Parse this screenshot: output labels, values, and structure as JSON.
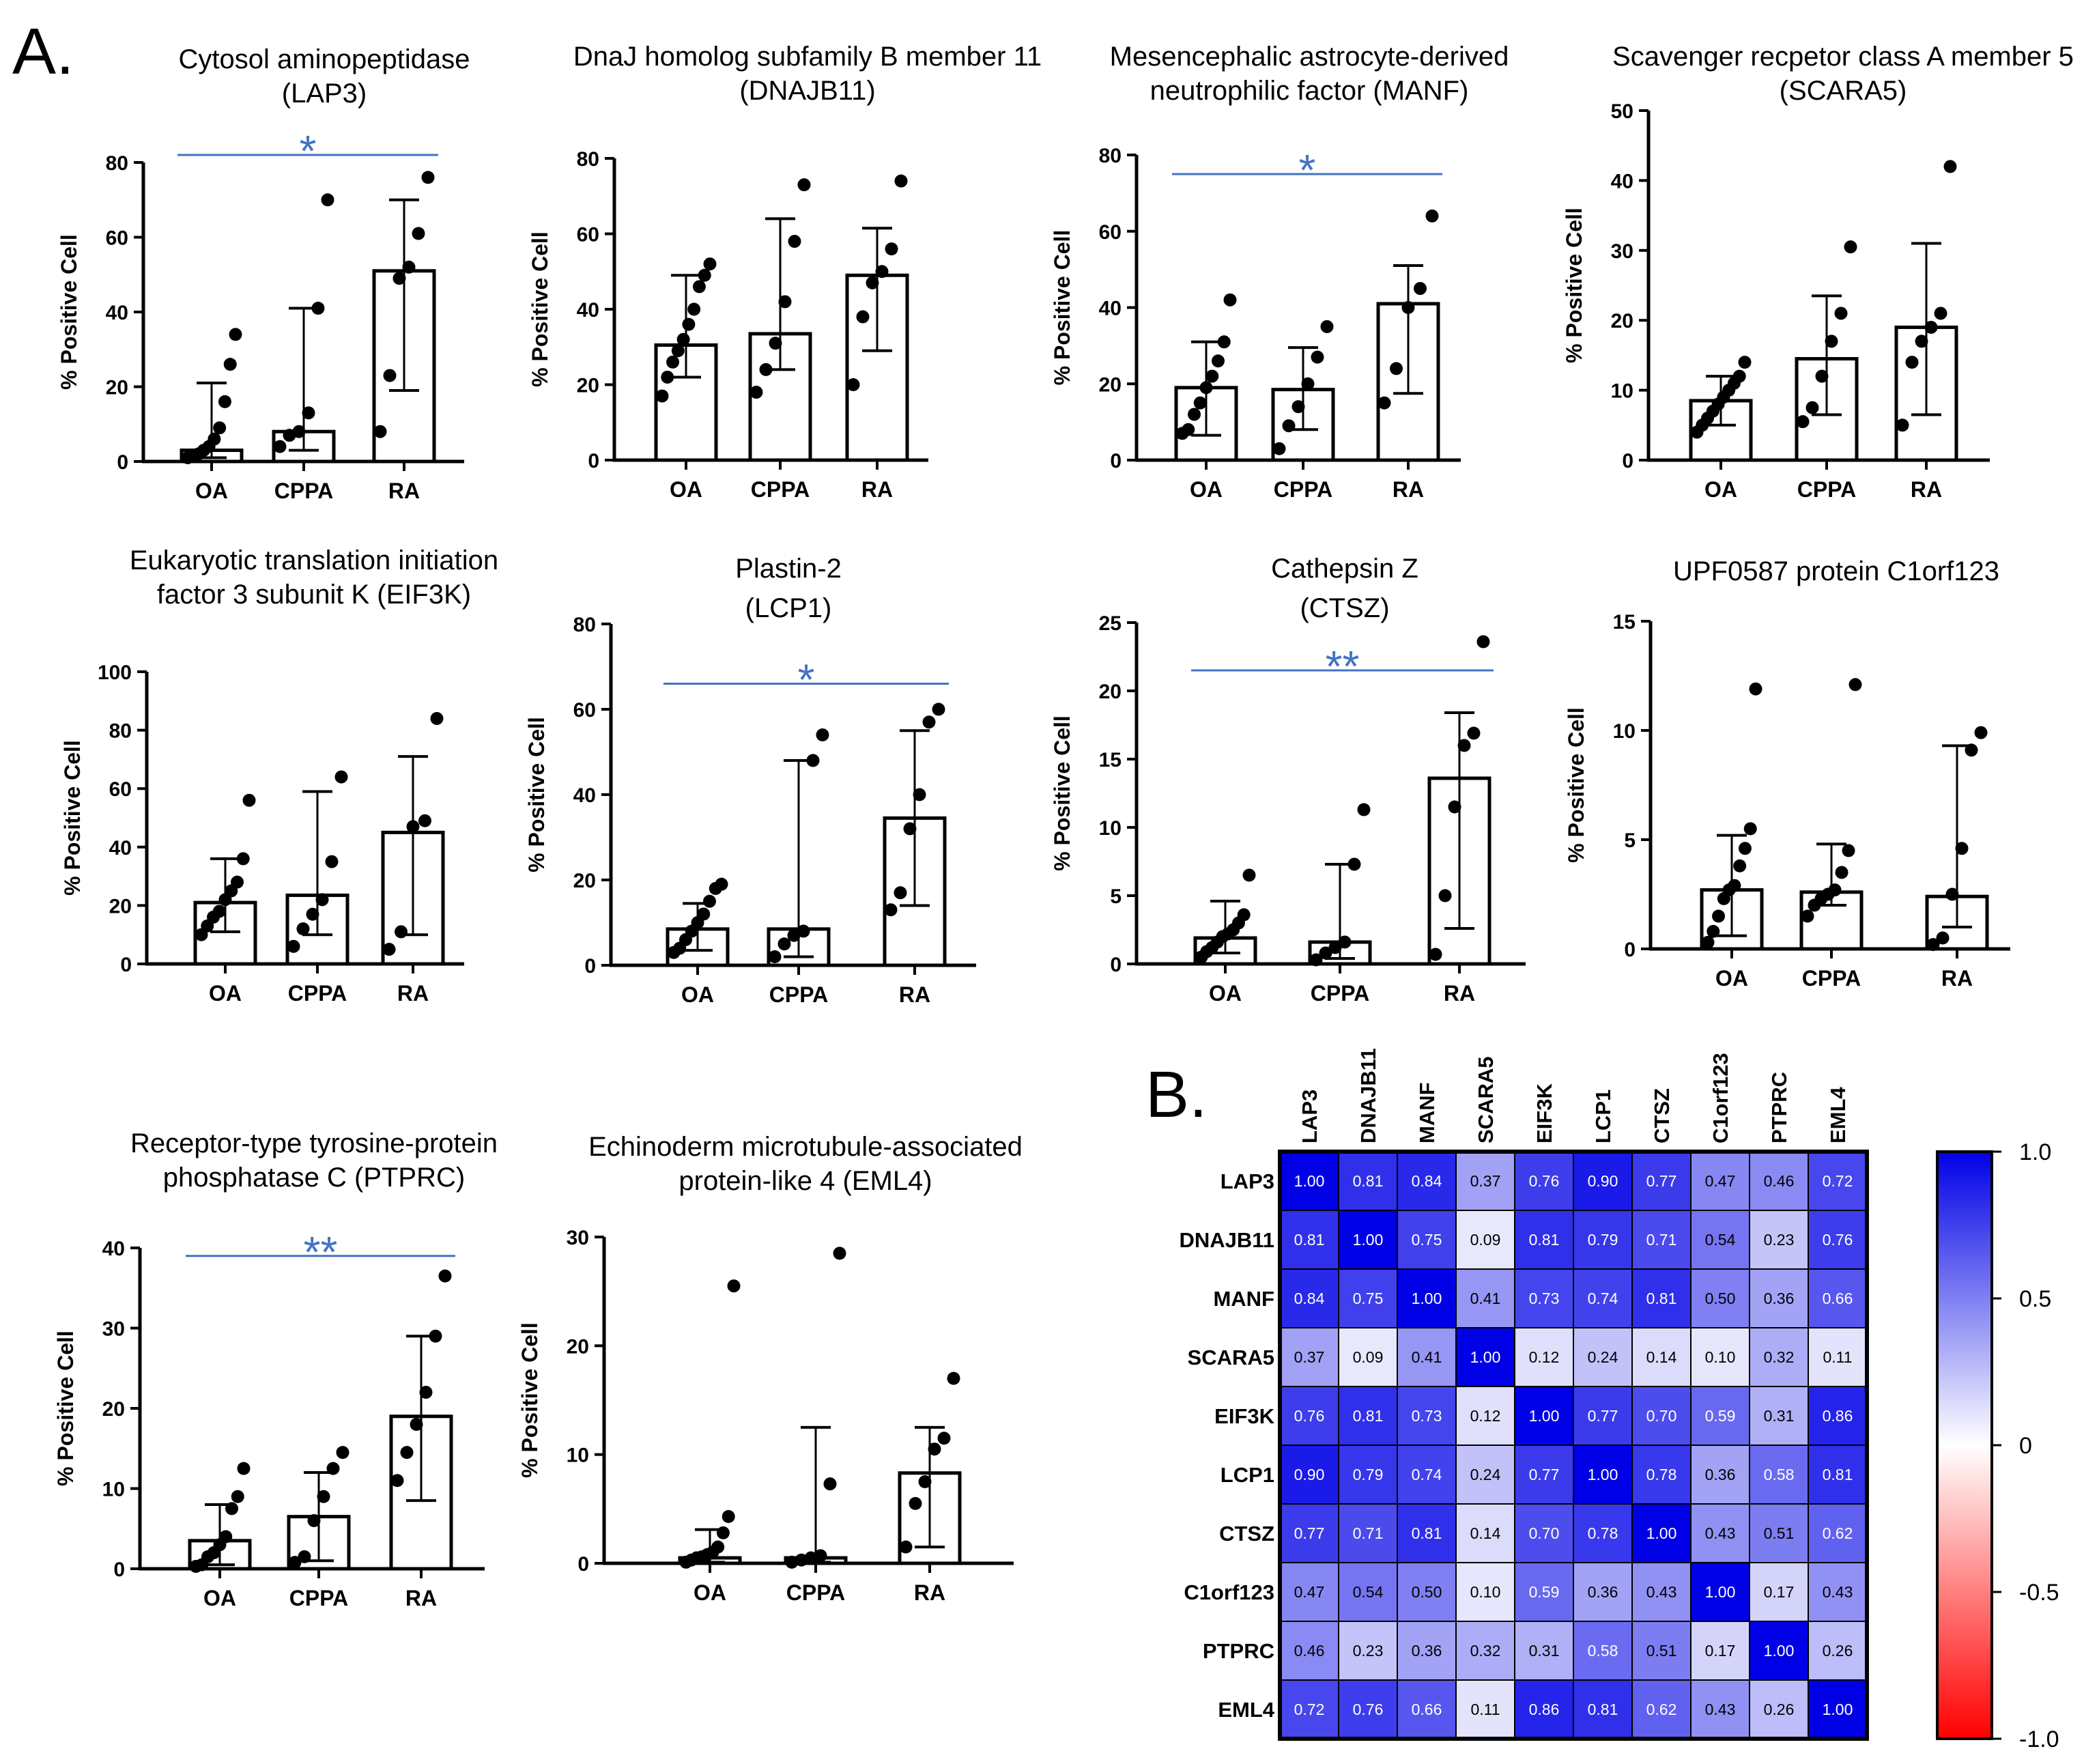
{
  "panel_labels": {
    "a": "A.",
    "b": "B."
  },
  "chart_data": [
    {
      "type": "bar",
      "id": "lap3",
      "title": [
        "Cytosol aminopeptidase",
        "(LAP3)"
      ],
      "ylabel": "% Positive Cell",
      "categories": [
        "OA",
        "CPPA",
        "RA"
      ],
      "ylim": [
        0,
        80
      ],
      "yticks": [
        0,
        20,
        40,
        60,
        80
      ],
      "bars": [
        3,
        8,
        51
      ],
      "err_low": [
        1,
        3,
        19
      ],
      "err_high": [
        21,
        41,
        70
      ],
      "points": [
        [
          1,
          1.5,
          2,
          3,
          4,
          6,
          9,
          16,
          26,
          34
        ],
        [
          4,
          7,
          8,
          13,
          41,
          70
        ],
        [
          8,
          23,
          49,
          52,
          61,
          76
        ]
      ],
      "sig": {
        "label": "*",
        "from": 0,
        "to": 2,
        "y": 82
      }
    },
    {
      "type": "bar",
      "id": "dnajb11",
      "title": [
        "DnaJ homolog subfamily B member 11",
        "(DNAJB11)"
      ],
      "ylabel": "% Positive Cell",
      "categories": [
        "OA",
        "CPPA",
        "RA"
      ],
      "ylim": [
        0,
        80
      ],
      "yticks": [
        0,
        20,
        40,
        60,
        80
      ],
      "bars": [
        30.5,
        33.5,
        49
      ],
      "err_low": [
        22,
        24,
        29
      ],
      "err_high": [
        49,
        64,
        61.5
      ],
      "points": [
        [
          17,
          22,
          26,
          29,
          32,
          36,
          40,
          46,
          49,
          52
        ],
        [
          18,
          24,
          31,
          42,
          58,
          73
        ],
        [
          20,
          38,
          47,
          50,
          56,
          74
        ]
      ],
      "sig": null
    },
    {
      "type": "bar",
      "id": "manf",
      "title": [
        "Mesencephalic astrocyte-derived",
        "neutrophilic factor (MANF)"
      ],
      "ylabel": "% Positive Cell",
      "categories": [
        "OA",
        "CPPA",
        "RA"
      ],
      "ylim": [
        0,
        80
      ],
      "yticks": [
        0,
        20,
        40,
        60,
        80
      ],
      "bars": [
        19,
        18.5,
        41
      ],
      "err_low": [
        6.5,
        8,
        17.5
      ],
      "err_high": [
        31,
        29.5,
        51
      ],
      "points": [
        [
          7,
          8,
          12,
          15,
          19,
          22,
          26,
          31,
          42
        ],
        [
          3,
          9,
          14,
          20,
          27,
          35
        ],
        [
          15,
          24,
          40,
          45,
          64
        ]
      ],
      "sig": {
        "label": "*",
        "from": 0,
        "to": 2,
        "y": 75
      }
    },
    {
      "type": "bar",
      "id": "scara5",
      "title": [
        "Scavenger recpetor class A member 5",
        "(SCARA5)"
      ],
      "ylabel": "% Positive Cell",
      "categories": [
        "OA",
        "CPPA",
        "RA"
      ],
      "ylim": [
        0,
        50
      ],
      "yticks": [
        0,
        10,
        20,
        30,
        40,
        50
      ],
      "bars": [
        8.5,
        14.5,
        19
      ],
      "err_low": [
        5,
        6.5,
        6.5
      ],
      "err_high": [
        12,
        23.5,
        31
      ],
      "points": [
        [
          4,
          5,
          6,
          7,
          8,
          9,
          10,
          11,
          12,
          14
        ],
        [
          5.5,
          7.5,
          12,
          17,
          21,
          30.5
        ],
        [
          5,
          14,
          17,
          19,
          21,
          42
        ]
      ],
      "sig": null
    },
    {
      "type": "bar",
      "id": "eif3k",
      "title": [
        "Eukaryotic translation initiation",
        "factor 3 subunit K (EIF3K)"
      ],
      "ylabel": "% Positive Cell",
      "categories": [
        "OA",
        "CPPA",
        "RA"
      ],
      "ylim": [
        0,
        100
      ],
      "yticks": [
        0,
        20,
        40,
        60,
        80,
        100
      ],
      "bars": [
        21,
        23.5,
        45
      ],
      "err_low": [
        11,
        10,
        10
      ],
      "err_high": [
        36,
        59,
        71
      ],
      "points": [
        [
          10,
          13,
          16,
          18,
          22,
          25,
          28,
          36,
          56
        ],
        [
          6,
          12,
          17,
          22,
          35,
          64
        ],
        [
          5,
          11,
          47,
          49,
          84
        ]
      ],
      "sig": null
    },
    {
      "type": "bar",
      "id": "lcp1",
      "title": [
        "Plastin-2",
        "(LCP1)"
      ],
      "ylabel": "% Positive Cell",
      "categories": [
        "OA",
        "CPPA",
        "RA"
      ],
      "ylim": [
        0,
        80
      ],
      "yticks": [
        0,
        20,
        40,
        60,
        80
      ],
      "bars": [
        8.5,
        8.5,
        34.5
      ],
      "err_low": [
        3.5,
        2,
        14
      ],
      "err_high": [
        14.5,
        48,
        55
      ],
      "points": [
        [
          3,
          4,
          6,
          8,
          10,
          12,
          15,
          18,
          19
        ],
        [
          2,
          5,
          7,
          8,
          48,
          54
        ],
        [
          13,
          17,
          32,
          40,
          57,
          60
        ]
      ],
      "sig": {
        "label": "*",
        "from": 0,
        "to": 2,
        "y": 66
      }
    },
    {
      "type": "bar",
      "id": "ctsz",
      "title": [
        "Cathepsin Z",
        "(CTSZ)"
      ],
      "ylabel": "% Positive Cell",
      "categories": [
        "OA",
        "CPPA",
        "RA"
      ],
      "ylim": [
        0,
        25
      ],
      "yticks": [
        0,
        5,
        10,
        15,
        20,
        25
      ],
      "bars": [
        1.9,
        1.6,
        13.6
      ],
      "err_low": [
        0.8,
        0.4,
        2.6
      ],
      "err_high": [
        4.6,
        7.3,
        18.4
      ],
      "points": [
        [
          0.5,
          0.9,
          1.2,
          1.6,
          2,
          2.2,
          2.5,
          3,
          3.6,
          6.5
        ],
        [
          0.3,
          0.8,
          1.2,
          1.6,
          7.3,
          11.3
        ],
        [
          0.7,
          5,
          11.5,
          16,
          16.9,
          23.6
        ]
      ],
      "sig": {
        "label": "**",
        "from": 0,
        "to": 2,
        "y": 21.5
      }
    },
    {
      "type": "bar",
      "id": "c1orf123",
      "title": [
        "UPF0587 protein C1orf123"
      ],
      "ylabel": "% Positive Cell",
      "categories": [
        "OA",
        "CPPA",
        "RA"
      ],
      "ylim": [
        0,
        15
      ],
      "yticks": [
        0,
        5,
        10,
        15
      ],
      "bars": [
        2.7,
        2.6,
        2.4
      ],
      "err_low": [
        0.6,
        2,
        1
      ],
      "err_high": [
        5.2,
        4.8,
        9.3
      ],
      "points": [
        [
          0.3,
          0.8,
          1.5,
          2.3,
          2.7,
          2.9,
          3.8,
          4.6,
          5.5,
          11.9
        ],
        [
          1.5,
          2,
          2.3,
          2.5,
          2.7,
          3.5,
          4.5,
          12.1
        ],
        [
          0.2,
          0.5,
          2.5,
          4.6,
          9.1,
          9.9
        ]
      ],
      "sig": null
    },
    {
      "type": "bar",
      "id": "ptprc",
      "title": [
        "Receptor-type tyrosine-protein",
        "phosphatase C (PTPRC)"
      ],
      "ylabel": "% Positive Cell",
      "categories": [
        "OA",
        "CPPA",
        "RA"
      ],
      "ylim": [
        0,
        40
      ],
      "yticks": [
        0,
        10,
        20,
        30,
        40
      ],
      "bars": [
        3.5,
        6.5,
        19
      ],
      "err_low": [
        0.5,
        1,
        8.5
      ],
      "err_high": [
        8,
        12,
        29
      ],
      "points": [
        [
          0.3,
          0.5,
          1.5,
          2,
          3,
          4,
          7.5,
          9,
          12.5
        ],
        [
          0.8,
          1.5,
          6,
          9,
          12.5,
          14.5
        ],
        [
          11,
          14.5,
          18,
          22,
          29,
          36.5
        ]
      ],
      "sig": {
        "label": "**",
        "from": 0,
        "to": 2,
        "y": 39
      }
    },
    {
      "type": "bar",
      "id": "eml4",
      "title": [
        "Echinoderm microtubule-associated",
        "protein-like 4 (EML4)"
      ],
      "ylabel": "% Positive Cell",
      "categories": [
        "OA",
        "CPPA",
        "RA"
      ],
      "ylim": [
        0,
        30
      ],
      "yticks": [
        0,
        10,
        20,
        30
      ],
      "bars": [
        0.5,
        0.5,
        8.3
      ],
      "err_low": [
        0.1,
        0.1,
        1.5
      ],
      "err_high": [
        3.1,
        12.5,
        12.5
      ],
      "points": [
        [
          0.1,
          0.3,
          0.5,
          0.6,
          0.8,
          1,
          1.5,
          2.8,
          4.3,
          25.5
        ],
        [
          0.1,
          0.3,
          0.5,
          0.7,
          7.3,
          28.5
        ],
        [
          1.5,
          5.5,
          7.5,
          10.5,
          11.5,
          17
        ]
      ],
      "sig": null
    },
    {
      "type": "heatmap",
      "id": "corr",
      "labels": [
        "LAP3",
        "DNAJB11",
        "MANF",
        "SCARA5",
        "EIF3K",
        "LCP1",
        "CTSZ",
        "C1orf123",
        "PTPRC",
        "EML4"
      ],
      "matrix": [
        [
          "1.00",
          "0.81",
          "0.84",
          "0.37",
          "0.76",
          "0.90",
          "0.77",
          "0.47",
          "0.46",
          "0.72"
        ],
        [
          "0.81",
          "1.00",
          "0.75",
          "0.09",
          "0.81",
          "0.79",
          "0.71",
          "0.54",
          "0.23",
          "0.76"
        ],
        [
          "0.84",
          "0.75",
          "1.00",
          "0.41",
          "0.73",
          "0.74",
          "0.81",
          "0.50",
          "0.36",
          "0.66"
        ],
        [
          "0.37",
          "0.09",
          "0.41",
          "1.00",
          "0.12",
          "0.24",
          "0.14",
          "0.10",
          "0.32",
          "0.11"
        ],
        [
          "0.76",
          "0.81",
          "0.73",
          "0.12",
          "1.00",
          "0.77",
          "0.70",
          "0.59",
          "0.31",
          "0.86"
        ],
        [
          "0.90",
          "0.79",
          "0.74",
          "0.24",
          "0.77",
          "1.00",
          "0.78",
          "0.36",
          "0.58",
          "0.81"
        ],
        [
          "0.77",
          "0.71",
          "0.81",
          "0.14",
          "0.70",
          "0.78",
          "1.00",
          "0.43",
          "0.51",
          "0.62"
        ],
        [
          "0.47",
          "0.54",
          "0.50",
          "0.10",
          "0.59",
          "0.36",
          "0.43",
          "1.00",
          "0.17",
          "0.43"
        ],
        [
          "0.46",
          "0.23",
          "0.36",
          "0.32",
          "0.31",
          "0.58",
          "0.51",
          "0.17",
          "1.00",
          "0.26"
        ],
        [
          "0.72",
          "0.76",
          "0.66",
          "0.11",
          "0.86",
          "0.81",
          "0.62",
          "0.43",
          "0.26",
          "1.00"
        ]
      ],
      "colorbar": {
        "ticks": [
          "1.0",
          "0.5",
          "0",
          "-0.5",
          "-1.0"
        ],
        "range": [
          -1,
          1
        ]
      },
      "colors": {
        "high": "#0000e6",
        "mid": "#ffffff",
        "low": "#ff0000"
      }
    }
  ]
}
